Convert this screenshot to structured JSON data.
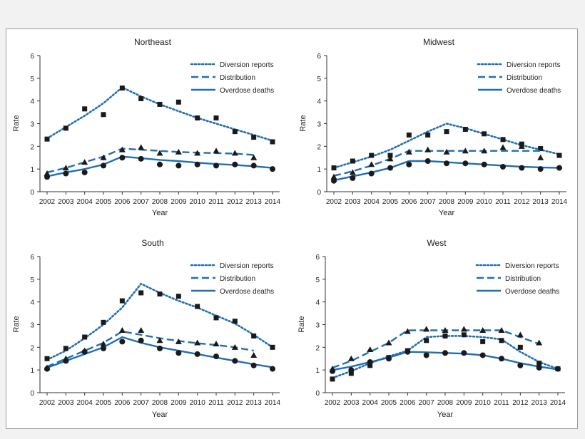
{
  "colors": {
    "line": "#1f6fb2",
    "marker": "#1a1a1a",
    "axis": "#333333"
  },
  "chart_data": [
    {
      "type": "line",
      "title": "Northeast",
      "xlabel": "Year",
      "ylabel": "Rate",
      "ylim": [
        0,
        6
      ],
      "yticks": [
        "0",
        "1",
        "2",
        "3",
        "4",
        "5",
        "6"
      ],
      "categories": [
        "2002",
        "2003",
        "2004",
        "2005",
        "2006",
        "2007",
        "2008",
        "2009",
        "2010",
        "2011",
        "2012",
        "2013",
        "2014"
      ],
      "legend_position": "top-right",
      "series": [
        {
          "name": "Diversion reports",
          "style": "dotted",
          "marker": "square",
          "line": [
            2.35,
            2.85,
            3.35,
            3.9,
            4.6,
            4.2,
            3.85,
            3.55,
            3.25,
            3.0,
            2.75,
            2.5,
            2.25
          ],
          "points": [
            2.32,
            2.8,
            3.65,
            3.4,
            4.57,
            4.1,
            3.85,
            3.95,
            3.25,
            3.25,
            2.65,
            2.4,
            2.2
          ]
        },
        {
          "name": "Distribution",
          "style": "dashed",
          "marker": "triangle",
          "line": [
            0.85,
            1.05,
            1.3,
            1.55,
            1.9,
            1.85,
            1.8,
            1.75,
            1.72,
            1.7,
            1.68,
            1.62,
            null
          ],
          "points": [
            0.8,
            1.05,
            1.3,
            1.5,
            1.85,
            1.95,
            1.7,
            1.75,
            1.7,
            1.8,
            1.7,
            1.5,
            null
          ]
        },
        {
          "name": "Overdose deaths",
          "style": "solid",
          "marker": "circle",
          "line": [
            0.68,
            0.85,
            1.0,
            1.2,
            1.55,
            1.48,
            1.4,
            1.35,
            1.28,
            1.22,
            1.18,
            1.12,
            1.05
          ],
          "points": [
            0.65,
            0.8,
            0.85,
            1.15,
            1.5,
            1.45,
            1.2,
            1.15,
            1.2,
            1.15,
            1.2,
            1.15,
            1.0
          ]
        }
      ]
    },
    {
      "type": "line",
      "title": "Midwest",
      "xlabel": "Year",
      "ylabel": "Rate",
      "ylim": [
        0,
        6
      ],
      "yticks": [
        "0",
        "1",
        "2",
        "3",
        "4",
        "5",
        "6"
      ],
      "categories": [
        "2002",
        "2003",
        "2004",
        "2005",
        "2006",
        "2007",
        "2008",
        "2009",
        "2010",
        "2011",
        "2012",
        "2013",
        "2014"
      ],
      "legend_position": "top-right",
      "series": [
        {
          "name": "Diversion reports",
          "style": "dotted",
          "marker": "square",
          "line": [
            1.05,
            1.3,
            1.55,
            1.85,
            2.25,
            2.65,
            3.0,
            2.8,
            2.55,
            2.3,
            2.05,
            1.85,
            1.65
          ],
          "points": [
            1.05,
            1.35,
            1.6,
            1.6,
            2.5,
            2.5,
            2.65,
            2.75,
            2.55,
            2.3,
            2.1,
            1.9,
            1.6
          ]
        },
        {
          "name": "Distribution",
          "style": "dashed",
          "marker": "triangle",
          "line": [
            0.7,
            0.9,
            1.15,
            1.45,
            1.8,
            1.8,
            1.8,
            1.8,
            1.8,
            1.8,
            1.8,
            1.8,
            null
          ],
          "points": [
            0.65,
            0.85,
            1.2,
            1.45,
            1.75,
            1.85,
            1.75,
            1.8,
            1.8,
            1.95,
            2.0,
            1.5,
            null
          ]
        },
        {
          "name": "Overdose deaths",
          "style": "solid",
          "marker": "circle",
          "line": [
            0.5,
            0.68,
            0.85,
            1.05,
            1.35,
            1.35,
            1.3,
            1.25,
            1.2,
            1.15,
            1.1,
            1.07,
            1.05
          ],
          "points": [
            0.48,
            0.6,
            0.8,
            1.05,
            1.2,
            1.35,
            1.25,
            1.25,
            1.2,
            1.1,
            1.05,
            1.0,
            1.05
          ]
        }
      ]
    },
    {
      "type": "line",
      "title": "South",
      "xlabel": "Year",
      "ylabel": "Rate",
      "ylim": [
        0,
        6
      ],
      "yticks": [
        "0",
        "1",
        "2",
        "3",
        "4",
        "5",
        "6"
      ],
      "categories": [
        "2002",
        "2003",
        "2004",
        "2005",
        "2006",
        "2007",
        "2008",
        "2009",
        "2010",
        "2011",
        "2012",
        "2013",
        "2014"
      ],
      "legend_position": "top-right",
      "series": [
        {
          "name": "Diversion reports",
          "style": "dotted",
          "marker": "square",
          "line": [
            1.45,
            1.85,
            2.4,
            3.0,
            3.75,
            4.8,
            4.4,
            4.05,
            3.75,
            3.4,
            3.05,
            2.55,
            2.0
          ],
          "points": [
            1.5,
            1.95,
            2.45,
            3.1,
            4.05,
            4.4,
            4.35,
            4.25,
            3.8,
            3.3,
            3.15,
            2.5,
            2.0
          ]
        },
        {
          "name": "Distribution",
          "style": "dashed",
          "marker": "triangle",
          "line": [
            1.15,
            1.5,
            1.85,
            2.2,
            2.7,
            2.55,
            2.4,
            2.28,
            2.18,
            2.1,
            2.0,
            1.85,
            null
          ],
          "points": [
            1.1,
            1.5,
            1.85,
            2.15,
            2.75,
            2.75,
            2.3,
            2.25,
            2.2,
            2.15,
            2.0,
            1.65,
            null
          ]
        },
        {
          "name": "Overdose deaths",
          "style": "solid",
          "marker": "circle",
          "line": [
            1.1,
            1.4,
            1.7,
            2.0,
            2.45,
            2.2,
            2.0,
            1.85,
            1.7,
            1.55,
            1.4,
            1.25,
            1.12
          ],
          "points": [
            1.05,
            1.4,
            1.8,
            1.95,
            2.25,
            2.3,
            1.95,
            1.75,
            1.7,
            1.6,
            1.4,
            1.2,
            1.05
          ]
        }
      ]
    },
    {
      "type": "line",
      "title": "West",
      "xlabel": "Year",
      "ylabel": "Rate",
      "ylim": [
        0,
        6
      ],
      "yticks": [
        "0",
        "1",
        "2",
        "3",
        "4",
        "5",
        "6"
      ],
      "categories": [
        "2002",
        "2003",
        "2004",
        "2005",
        "2006",
        "2007",
        "2008",
        "2009",
        "2010",
        "2011",
        "2012",
        "2013",
        "2014"
      ],
      "legend_position": "top-right",
      "series": [
        {
          "name": "Diversion reports",
          "style": "dotted",
          "marker": "square",
          "line": [
            0.65,
            0.95,
            1.3,
            1.6,
            1.85,
            2.45,
            2.5,
            2.5,
            2.45,
            2.35,
            1.8,
            1.35,
            1.05
          ],
          "points": [
            0.6,
            0.85,
            1.2,
            1.55,
            1.85,
            2.3,
            2.5,
            2.55,
            2.25,
            2.3,
            2.0,
            1.3,
            1.05
          ]
        },
        {
          "name": "Distribution",
          "style": "dashed",
          "marker": "triangle",
          "line": [
            1.1,
            1.4,
            1.8,
            2.2,
            2.75,
            2.75,
            2.75,
            2.75,
            2.75,
            2.75,
            2.45,
            2.15,
            null
          ],
          "points": [
            1.05,
            1.5,
            1.9,
            2.2,
            2.7,
            2.8,
            2.75,
            2.8,
            2.75,
            2.75,
            2.55,
            2.2,
            null
          ]
        },
        {
          "name": "Overdose deaths",
          "style": "solid",
          "marker": "circle",
          "line": [
            1.0,
            1.15,
            1.35,
            1.55,
            1.8,
            1.78,
            1.75,
            1.72,
            1.65,
            1.5,
            1.3,
            1.15,
            1.02
          ],
          "points": [
            0.95,
            1.0,
            1.35,
            1.5,
            1.8,
            1.65,
            1.75,
            1.75,
            1.65,
            1.5,
            1.2,
            1.1,
            1.05
          ]
        }
      ]
    }
  ]
}
